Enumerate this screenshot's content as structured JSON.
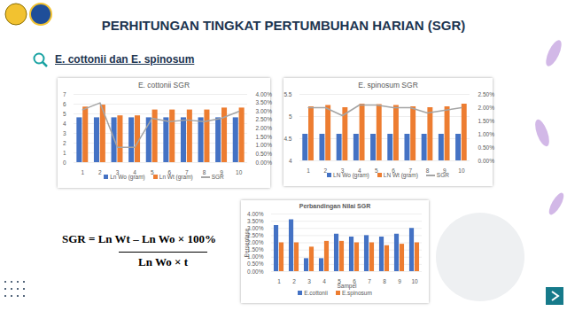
{
  "header": {
    "title": "PERHITUNGAN TINGKAT PERTUMBUHAN HARIAN (SGR)",
    "subtitle": "E. cottonii dan E. spinosum",
    "formula_numerator": "SGR = Ln Wt – Ln Wo × 100%",
    "formula_denominator": "Ln Wo × t"
  },
  "chart_data": [
    {
      "type": "bar",
      "title": "E. cottonii SGR",
      "categories": [
        "1",
        "2",
        "3",
        "4",
        "5",
        "6",
        "7",
        "8",
        "9",
        "10"
      ],
      "ylim": [
        0,
        7
      ],
      "yticks": [
        0,
        1,
        2,
        3,
        4,
        5,
        6,
        7
      ],
      "y2lim": [
        0,
        4
      ],
      "y2ticks": [
        {
          "value": 0,
          "label": "0.00%"
        },
        {
          "value": 0.5,
          "label": "0.50%"
        },
        {
          "value": 1,
          "label": "1.00%"
        },
        {
          "value": 1.5,
          "label": "1.50%"
        },
        {
          "value": 2,
          "label": "2.00%"
        },
        {
          "value": 2.5,
          "label": "2.50%"
        },
        {
          "value": 3,
          "label": "3.00%"
        },
        {
          "value": 3.5,
          "label": "3.50%"
        },
        {
          "value": 4,
          "label": "4.00%"
        }
      ],
      "grid": true,
      "legend": "bottom",
      "series": [
        {
          "name": "Ln Wo (gram)",
          "type": "bar",
          "color": "#4472c4",
          "values": [
            4.6,
            4.6,
            4.6,
            4.6,
            4.6,
            4.6,
            4.6,
            4.6,
            4.6,
            4.6
          ]
        },
        {
          "name": "Ln Wt (gram)",
          "type": "bar",
          "color": "#ed7d31",
          "values": [
            5.7,
            5.9,
            4.8,
            4.8,
            5.4,
            5.4,
            5.4,
            5.4,
            5.6,
            5.6
          ]
        },
        {
          "name": "SGR",
          "type": "line",
          "axis": "y2",
          "color": "#a5a5a5",
          "values": [
            3.1,
            3.5,
            0.9,
            0.9,
            2.6,
            2.4,
            2.5,
            2.4,
            2.6,
            3.0
          ]
        }
      ]
    },
    {
      "type": "bar",
      "title": "E. spinosum SGR",
      "categories": [
        "1",
        "2",
        "3",
        "4",
        "5",
        "6",
        "7",
        "8",
        "9",
        "10"
      ],
      "ylim": [
        4,
        5.5
      ],
      "yticks": [
        4,
        4.5,
        5,
        5.5
      ],
      "y2lim": [
        0,
        2.5
      ],
      "y2ticks": [
        {
          "value": 0,
          "label": "0.00%"
        },
        {
          "value": 0.5,
          "label": "0.50%"
        },
        {
          "value": 1,
          "label": "1.00%"
        },
        {
          "value": 1.5,
          "label": "1.50%"
        },
        {
          "value": 2,
          "label": "2.00%"
        },
        {
          "value": 2.5,
          "label": "2.50%"
        }
      ],
      "grid": true,
      "legend": "bottom",
      "series": [
        {
          "name": "LN Wo (gram)",
          "type": "bar",
          "color": "#4472c4",
          "values": [
            4.6,
            4.6,
            4.6,
            4.6,
            4.6,
            4.6,
            4.6,
            4.6,
            4.6,
            4.6
          ]
        },
        {
          "name": "LN Wt (gram)",
          "type": "bar",
          "color": "#ed7d31",
          "values": [
            5.22,
            5.25,
            5.2,
            5.28,
            5.27,
            5.25,
            5.22,
            5.2,
            5.22,
            5.28
          ]
        },
        {
          "name": "SGR",
          "type": "line",
          "axis": "y2",
          "color": "#a5a5a5",
          "values": [
            2.0,
            2.0,
            1.7,
            2.1,
            2.1,
            2.0,
            2.0,
            1.8,
            1.9,
            2.0
          ]
        }
      ]
    },
    {
      "type": "bar",
      "title": "Perbandingan Nilai SGR",
      "categories": [
        "1",
        "2",
        "3",
        "4",
        "5",
        "6",
        "7",
        "8",
        "9",
        "10"
      ],
      "xlabel": "Sampel",
      "ylabel": "Persentase",
      "ylim": [
        0,
        4
      ],
      "yticks": [
        {
          "value": 0,
          "label": "0.00%"
        },
        {
          "value": 0.5,
          "label": "0.50%"
        },
        {
          "value": 1,
          "label": "1.00%"
        },
        {
          "value": 1.5,
          "label": "1.50%"
        },
        {
          "value": 2,
          "label": "2.00%"
        },
        {
          "value": 2.5,
          "label": "2.50%"
        },
        {
          "value": 3,
          "label": "3.00%"
        },
        {
          "value": 3.5,
          "label": "3.50%"
        },
        {
          "value": 4,
          "label": "4.00%"
        }
      ],
      "grid": true,
      "legend": "bottom",
      "series": [
        {
          "name": "E.cottonii",
          "color": "#4472c4",
          "values": [
            3.2,
            3.6,
            0.9,
            0.9,
            2.6,
            2.4,
            2.5,
            2.4,
            2.6,
            3.0
          ]
        },
        {
          "name": "E.spinosum",
          "color": "#ed7d31",
          "values": [
            2.0,
            2.0,
            1.7,
            2.1,
            2.1,
            2.0,
            2.0,
            1.8,
            1.9,
            2.0
          ]
        }
      ]
    }
  ]
}
